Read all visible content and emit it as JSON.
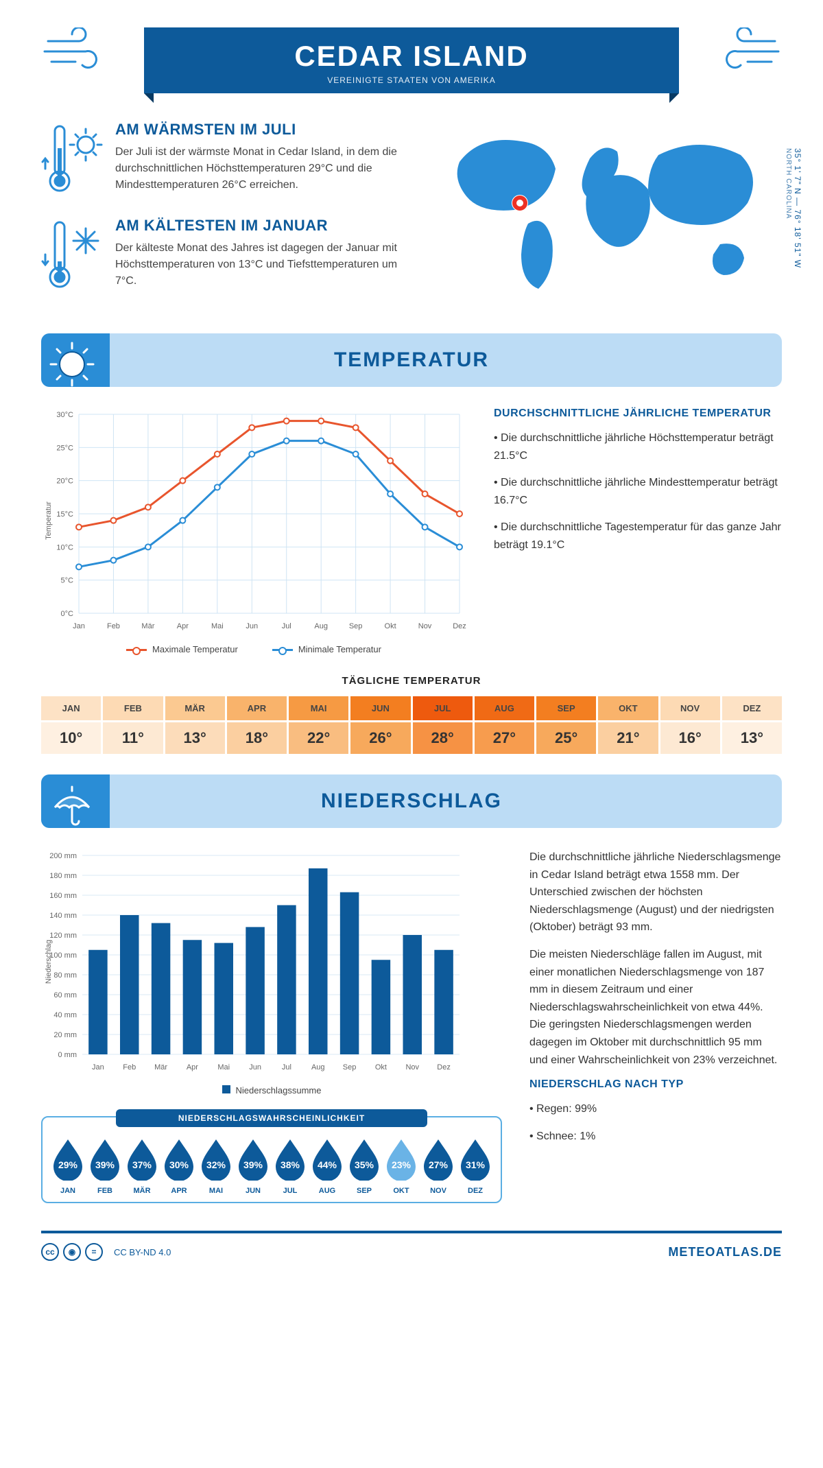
{
  "header": {
    "title": "CEDAR ISLAND",
    "subtitle": "VEREINIGTE STAATEN VON AMERIKA"
  },
  "coords": {
    "lat": "35° 1' 7\" N",
    "lon": "76° 18' 51\" W",
    "state": "NORTH CAROLINA"
  },
  "facts": {
    "warm": {
      "title": "AM WÄRMSTEN IM JULI",
      "body": "Der Juli ist der wärmste Monat in Cedar Island, in dem die durchschnittlichen Höchsttemperaturen 29°C und die Mindesttemperaturen 26°C erreichen."
    },
    "cold": {
      "title": "AM KÄLTESTEN IM JANUAR",
      "body": "Der kälteste Monat des Jahres ist dagegen der Januar mit Höchsttemperaturen von 13°C und Tiefsttemperaturen um 7°C."
    }
  },
  "temperature": {
    "section_title": "TEMPERATUR",
    "chart": {
      "type": "line",
      "months": [
        "Jan",
        "Feb",
        "Mär",
        "Apr",
        "Mai",
        "Jun",
        "Jul",
        "Aug",
        "Sep",
        "Okt",
        "Nov",
        "Dez"
      ],
      "ylabel": "Temperatur",
      "ylim": [
        0,
        30
      ],
      "ytick_step": 5,
      "ytick_labels": [
        "0°C",
        "5°C",
        "10°C",
        "15°C",
        "20°C",
        "25°C",
        "30°C"
      ],
      "grid_color": "#cfe4f4",
      "background_color": "#ffffff",
      "label_fontsize": 11,
      "series": [
        {
          "name": "Maximale Temperatur",
          "color": "#e8552d",
          "values": [
            13,
            14,
            16,
            20,
            24,
            28,
            29,
            29,
            28,
            23,
            18,
            15
          ]
        },
        {
          "name": "Minimale Temperatur",
          "color": "#2a8dd6",
          "values": [
            7,
            8,
            10,
            14,
            19,
            24,
            26,
            26,
            24,
            18,
            13,
            10
          ]
        }
      ],
      "line_width": 3,
      "marker_radius": 4,
      "marker_fill": "#ffffff"
    },
    "summary": {
      "heading": "DURCHSCHNITTLICHE JÄHRLICHE TEMPERATUR",
      "bullets": [
        "• Die durchschnittliche jährliche Höchsttemperatur beträgt 21.5°C",
        "• Die durchschnittliche jährliche Mindesttemperatur beträgt 16.7°C",
        "• Die durchschnittliche Tagestemperatur für das ganze Jahr beträgt 19.1°C"
      ]
    },
    "daily": {
      "title": "TÄGLICHE TEMPERATUR",
      "months": [
        "JAN",
        "FEB",
        "MÄR",
        "APR",
        "MAI",
        "JUN",
        "JUL",
        "AUG",
        "SEP",
        "OKT",
        "NOV",
        "DEZ"
      ],
      "values": [
        "10°",
        "11°",
        "13°",
        "18°",
        "22°",
        "26°",
        "28°",
        "27°",
        "25°",
        "21°",
        "16°",
        "13°"
      ],
      "head_colors": [
        "#fde2c5",
        "#fddab4",
        "#fbc991",
        "#f9b36b",
        "#f69a43",
        "#f37e20",
        "#ee5a0e",
        "#f06a15",
        "#f37e20",
        "#f9b36b",
        "#fddab4",
        "#fde2c5"
      ],
      "val_colors": [
        "#fef0e1",
        "#fde9d3",
        "#fcdcba",
        "#fbcfa0",
        "#f9bd80",
        "#f7a95c",
        "#f69244",
        "#f79c4e",
        "#f7a95c",
        "#fbcfa0",
        "#fde9d3",
        "#fef0e1"
      ]
    }
  },
  "precipitation": {
    "section_title": "NIEDERSCHLAG",
    "chart": {
      "type": "bar",
      "months": [
        "Jan",
        "Feb",
        "Mär",
        "Apr",
        "Mai",
        "Jun",
        "Jul",
        "Aug",
        "Sep",
        "Okt",
        "Nov",
        "Dez"
      ],
      "ylabel": "Niederschlag",
      "ylim": [
        0,
        200
      ],
      "ytick_step": 20,
      "values_mm": [
        105,
        140,
        132,
        115,
        112,
        128,
        150,
        187,
        163,
        95,
        120,
        105
      ],
      "bar_color": "#0d5a9a",
      "grid_color": "#d8e8f4",
      "label_fontsize": 11,
      "legend": "Niederschlagssumme",
      "bar_width_ratio": 0.6
    },
    "body": {
      "p1": "Die durchschnittliche jährliche Niederschlagsmenge in Cedar Island beträgt etwa 1558 mm. Der Unterschied zwischen der höchsten Niederschlagsmenge (August) und der niedrigsten (Oktober) beträgt 93 mm.",
      "p2": "Die meisten Niederschläge fallen im August, mit einer monatlichen Niederschlagsmenge von 187 mm in diesem Zeitraum und einer Niederschlagswahrscheinlichkeit von etwa 44%. Die geringsten Niederschlagsmengen werden dagegen im Oktober mit durchschnittlich 95 mm und einer Wahrscheinlichkeit von 23% verzeichnet.",
      "type_head": "NIEDERSCHLAG NACH TYP",
      "type_bullets": [
        "• Regen: 99%",
        "• Schnee: 1%"
      ]
    },
    "probability": {
      "title": "NIEDERSCHLAGSWAHRSCHEINLICHKEIT",
      "months": [
        "JAN",
        "FEB",
        "MÄR",
        "APR",
        "MAI",
        "JUN",
        "JUL",
        "AUG",
        "SEP",
        "OKT",
        "NOV",
        "DEZ"
      ],
      "values": [
        "29%",
        "39%",
        "37%",
        "30%",
        "32%",
        "39%",
        "38%",
        "44%",
        "35%",
        "23%",
        "27%",
        "31%"
      ],
      "drop_color_dark": "#0d5a9a",
      "drop_color_light": "#6ab3e6",
      "light_index": 9
    }
  },
  "footer": {
    "license": "CC BY-ND 4.0",
    "brand": "METEOATLAS.DE"
  },
  "colors": {
    "brand_dark": "#0d5a9a",
    "brand_mid": "#2a8dd6",
    "banner_light": "#bcdcf5",
    "accent_red": "#ed3124"
  }
}
